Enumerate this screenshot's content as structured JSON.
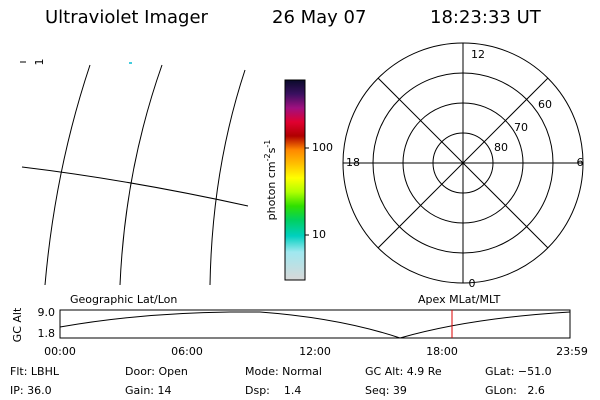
{
  "header": {
    "instrument": "Ultraviolet Imager",
    "date": "26 May 07",
    "time": "18:23:33 UT"
  },
  "map": {
    "mark": "1"
  },
  "color_bar": {
    "label": [
      "photon cm",
      "-2",
      "s",
      "-1"
    ],
    "ticks": [
      "100",
      "10"
    ]
  },
  "polar": {
    "mlt_labels": [
      "12",
      "18",
      "6",
      "0"
    ],
    "lat_labels": [
      "60",
      "70",
      "80"
    ]
  },
  "altitude_strip": {
    "axis_label": "GC Alt",
    "ticks": [
      "9.0",
      "1.8"
    ],
    "left_label": "Geographic Lat/Lon",
    "right_label": "Apex MLat/MLT",
    "time_ticks": [
      "00:00",
      "06:00",
      "12:00",
      "18:00",
      "23:59"
    ]
  },
  "info": [
    [
      "Flt: LBHL",
      "Door: Open",
      "Mode: Normal",
      "GC Alt: 4.9 Re",
      "GLat: −51.0"
    ],
    [
      "IP: 36.0",
      "Gain: 14",
      "Dsp:    1.4",
      "Seq: 39",
      "GLon:   2.6"
    ]
  ]
}
